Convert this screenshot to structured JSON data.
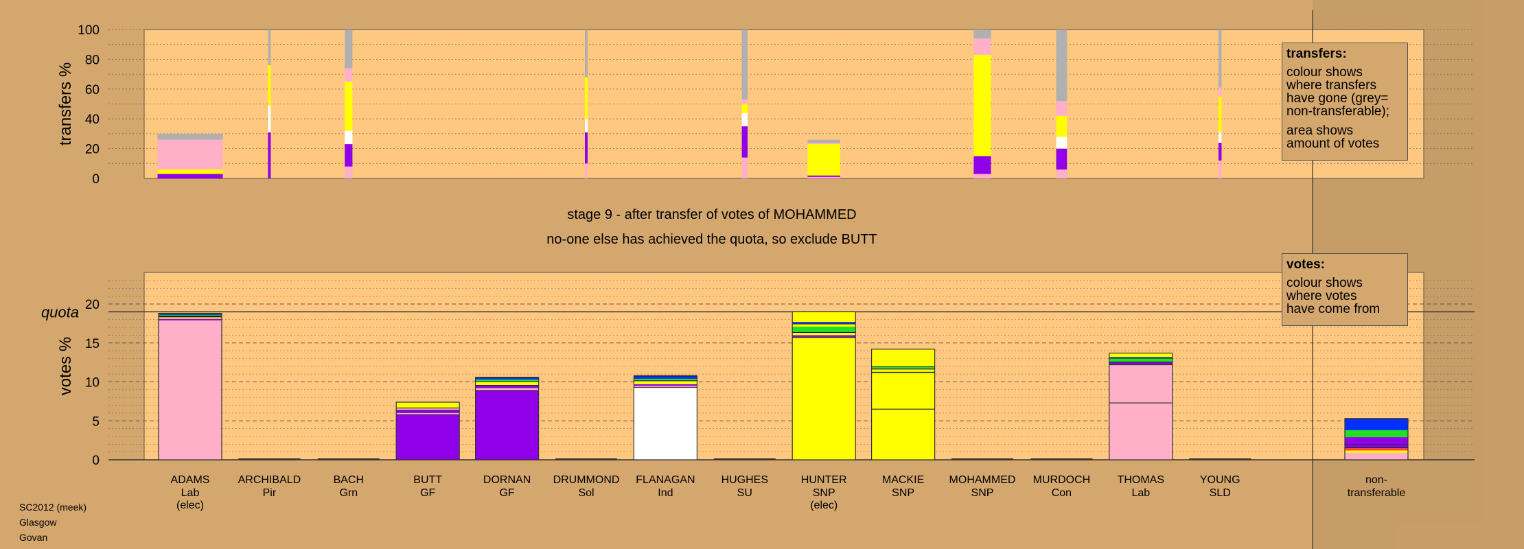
{
  "chart_data": {
    "type": "bar",
    "title": "stage 9 - after transfer of votes of MOHAMMED",
    "subtitle": "no-one else has achieved the quota, so exclude BUTT",
    "colors": {
      "background": "#d4a76e",
      "plot": "#ffc880",
      "Lab": "#ffb0c8",
      "GF": "#9000e8",
      "SNP": "#ffff00",
      "Ind": "#ffffff",
      "Grn": "#20e020",
      "SLD": "#0030ff",
      "SU": "#101040",
      "Sol": "#ff4040",
      "nontransferable": "#b0b0b0"
    },
    "candidates": [
      {
        "name": "ADAMS",
        "party": "Lab",
        "status": "(elec)"
      },
      {
        "name": "ARCHIBALD",
        "party": "Pir",
        "status": ""
      },
      {
        "name": "BACH",
        "party": "Grn",
        "status": ""
      },
      {
        "name": "BUTT",
        "party": "GF",
        "status": ""
      },
      {
        "name": "DORNAN",
        "party": "GF",
        "status": ""
      },
      {
        "name": "DRUMMOND",
        "party": "Sol",
        "status": ""
      },
      {
        "name": "FLANAGAN",
        "party": "Ind",
        "status": ""
      },
      {
        "name": "HUGHES",
        "party": "SU",
        "status": ""
      },
      {
        "name": "HUNTER",
        "party": "SNP",
        "status": "(elec)"
      },
      {
        "name": "MACKIE",
        "party": "SNP",
        "status": ""
      },
      {
        "name": "MOHAMMED",
        "party": "SNP",
        "status": ""
      },
      {
        "name": "MURDOCH",
        "party": "Con",
        "status": ""
      },
      {
        "name": "THOMAS",
        "party": "Lab",
        "status": ""
      },
      {
        "name": "YOUNG",
        "party": "SLD",
        "status": ""
      }
    ],
    "nontransferable_label": [
      "non-",
      "transferable"
    ],
    "transfers_chart": {
      "ylabel": "transfers %",
      "ylim": [
        0,
        100
      ],
      "yticks": [
        0,
        20,
        40,
        60,
        80,
        100
      ],
      "bars": [
        {
          "candidate": "ADAMS",
          "width_pct": 1.7,
          "segments": [
            {
              "c": "GF",
              "v": 3
            },
            {
              "c": "SNP",
              "v": 3
            },
            {
              "c": "Lab",
              "v": 20
            },
            {
              "c": "nontransferable",
              "v": 4
            }
          ]
        },
        {
          "candidate": "ARCHIBALD",
          "width_pct": 0.05,
          "segments": [
            {
              "c": "GF",
              "v": 31
            },
            {
              "c": "Ind",
              "v": 18
            },
            {
              "c": "SNP",
              "v": 27
            },
            {
              "c": "nontransferable",
              "v": 24
            }
          ]
        },
        {
          "candidate": "BACH",
          "width_pct": 0.2,
          "segments": [
            {
              "c": "Lab",
              "v": 8
            },
            {
              "c": "GF",
              "v": 15
            },
            {
              "c": "Ind",
              "v": 9
            },
            {
              "c": "SNP",
              "v": 33
            },
            {
              "c": "Lab",
              "v": 9
            },
            {
              "c": "nontransferable",
              "v": 26
            }
          ]
        },
        {
          "candidate": "DRUMMOND",
          "width_pct": 0.05,
          "segments": [
            {
              "c": "Lab",
              "v": 10
            },
            {
              "c": "GF",
              "v": 21
            },
            {
              "c": "Ind",
              "v": 9
            },
            {
              "c": "SNP",
              "v": 28
            },
            {
              "c": "nontransferable",
              "v": 32
            }
          ]
        },
        {
          "candidate": "HUGHES",
          "width_pct": 0.15,
          "segments": [
            {
              "c": "Lab",
              "v": 14
            },
            {
              "c": "GF",
              "v": 21
            },
            {
              "c": "Ind",
              "v": 9
            },
            {
              "c": "SNP",
              "v": 6
            },
            {
              "c": "Lab",
              "v": 3
            },
            {
              "c": "nontransferable",
              "v": 47
            }
          ]
        },
        {
          "candidate": "HUNTER",
          "width_pct": 0.85,
          "segments": [
            {
              "c": "Lab",
              "v": 1
            },
            {
              "c": "GF",
              "v": 1
            },
            {
              "c": "SNP",
              "v": 21
            },
            {
              "c": "Lab",
              "v": 1
            },
            {
              "c": "nontransferable",
              "v": 2
            }
          ]
        },
        {
          "candidate": "MOHAMMED",
          "width_pct": 0.45,
          "segments": [
            {
              "c": "Lab",
              "v": 3
            },
            {
              "c": "GF",
              "v": 12
            },
            {
              "c": "SNP",
              "v": 68
            },
            {
              "c": "Lab",
              "v": 11
            },
            {
              "c": "nontransferable",
              "v": 6
            }
          ]
        },
        {
          "candidate": "MURDOCH",
          "width_pct": 0.28,
          "segments": [
            {
              "c": "Lab",
              "v": 6
            },
            {
              "c": "GF",
              "v": 14
            },
            {
              "c": "Ind",
              "v": 8
            },
            {
              "c": "SNP",
              "v": 14
            },
            {
              "c": "Lab",
              "v": 10
            },
            {
              "c": "nontransferable",
              "v": 48
            }
          ]
        },
        {
          "candidate": "YOUNG",
          "width_pct": 0.08,
          "segments": [
            {
              "c": "Lab",
              "v": 12
            },
            {
              "c": "GF",
              "v": 12
            },
            {
              "c": "Ind",
              "v": 7
            },
            {
              "c": "SNP",
              "v": 24
            },
            {
              "c": "Lab",
              "v": 6
            },
            {
              "c": "nontransferable",
              "v": 39
            }
          ]
        }
      ]
    },
    "votes_chart": {
      "ylabel": "votes %",
      "ylim": [
        0,
        24
      ],
      "yticks": [
        0,
        5,
        10,
        15,
        20
      ],
      "quota_label": "quota",
      "quota": 19.0,
      "bars": [
        {
          "candidate": "ADAMS",
          "segments": [
            {
              "c": "Lab",
              "v": 17.9
            },
            {
              "c": "GF",
              "v": 0.2
            },
            {
              "c": "SNP",
              "v": 0.2
            },
            {
              "c": "SU",
              "v": 0.2
            },
            {
              "c": "Grn",
              "v": 0.1
            },
            {
              "c": "SLD",
              "v": 0.1
            },
            {
              "c": "SU",
              "v": 0.1
            }
          ],
          "dividers": []
        },
        {
          "candidate": "BUTT",
          "segments": [
            {
              "c": "GF",
              "v": 5.8
            },
            {
              "c": "Lab",
              "v": 0.2
            },
            {
              "c": "GF",
              "v": 0.3
            },
            {
              "c": "SU",
              "v": 0.1
            },
            {
              "c": "Lab",
              "v": 0.2
            },
            {
              "c": "SU",
              "v": 0.1
            },
            {
              "c": "SNP",
              "v": 0.7
            }
          ],
          "dividers": [
            5.8
          ]
        },
        {
          "candidate": "DORNAN",
          "segments": [
            {
              "c": "GF",
              "v": 8.9
            },
            {
              "c": "Lab",
              "v": 0.3
            },
            {
              "c": "GF",
              "v": 0.3
            },
            {
              "c": "SU",
              "v": 0.1
            },
            {
              "c": "SNP",
              "v": 0.4
            },
            {
              "c": "SU",
              "v": 0.1
            },
            {
              "c": "Grn",
              "v": 0.2
            },
            {
              "c": "SLD",
              "v": 0.2
            },
            {
              "c": "SU",
              "v": 0.1
            }
          ],
          "dividers": [
            8.9
          ]
        },
        {
          "candidate": "FLANAGAN",
          "segments": [
            {
              "c": "Ind",
              "v": 9.3
            },
            {
              "c": "Lab",
              "v": 0.2
            },
            {
              "c": "GF",
              "v": 0.2
            },
            {
              "c": "SNP",
              "v": 0.4
            },
            {
              "c": "SU",
              "v": 0.1
            },
            {
              "c": "Grn",
              "v": 0.2
            },
            {
              "c": "SLD",
              "v": 0.3
            },
            {
              "c": "SU",
              "v": 0.1
            }
          ],
          "dividers": [
            9.3
          ]
        },
        {
          "candidate": "HUNTER",
          "segments": [
            {
              "c": "SNP",
              "v": 15.7
            },
            {
              "c": "SU",
              "v": 0.1
            },
            {
              "c": "GF",
              "v": 0.2
            },
            {
              "c": "SNP",
              "v": 0.3
            },
            {
              "c": "SU",
              "v": 0.1
            },
            {
              "c": "Grn",
              "v": 0.7
            },
            {
              "c": "SNP",
              "v": 0.3
            },
            {
              "c": "SU",
              "v": 0.1
            },
            {
              "c": "SLD",
              "v": 0.2
            },
            {
              "c": "SNP",
              "v": 1.3
            }
          ],
          "dividers": [
            15.7
          ]
        },
        {
          "candidate": "MACKIE",
          "segments": [
            {
              "c": "SNP",
              "v": 11.2
            },
            {
              "c": "SU",
              "v": 0.1
            },
            {
              "c": "SNP",
              "v": 0.3
            },
            {
              "c": "SU",
              "v": 0.1
            },
            {
              "c": "Grn",
              "v": 0.2
            },
            {
              "c": "SU",
              "v": 0.1
            },
            {
              "c": "SNP",
              "v": 2.2
            }
          ],
          "dividers": [
            6.5,
            11.2
          ]
        },
        {
          "candidate": "THOMAS",
          "segments": [
            {
              "c": "Lab",
              "v": 12.2
            },
            {
              "c": "SU",
              "v": 0.1
            },
            {
              "c": "GF",
              "v": 0.2
            },
            {
              "c": "SU",
              "v": 0.1
            },
            {
              "c": "Grn",
              "v": 0.4
            },
            {
              "c": "SU",
              "v": 0.1
            },
            {
              "c": "SLD",
              "v": 0.1
            },
            {
              "c": "SNP",
              "v": 0.5
            }
          ],
          "dividers": [
            7.3,
            12.2
          ]
        },
        {
          "candidate": "non-transferable",
          "segments": [
            {
              "c": "Lab",
              "v": 0.9
            },
            {
              "c": "SNP",
              "v": 0.3
            },
            {
              "c": "Sol",
              "v": 0.3
            },
            {
              "c": "SU",
              "v": 0.1
            },
            {
              "c": "GF",
              "v": 0.3
            },
            {
              "c": "SU",
              "v": 0.1
            },
            {
              "c": "GF",
              "v": 0.9
            },
            {
              "c": "Grn",
              "v": 0.9
            },
            {
              "c": "SLD",
              "v": 1.4
            },
            {
              "c": "SU",
              "v": 0.1
            }
          ],
          "dividers": []
        }
      ]
    }
  },
  "legends": {
    "transfers": {
      "title": "transfers:",
      "lines": [
        [
          "colour shows",
          "where transfers",
          "have gone (grey=",
          "non-transferable);"
        ],
        [
          "area shows",
          "amount of votes"
        ]
      ]
    },
    "votes": {
      "title": "votes:",
      "lines": [
        [
          "colour shows",
          "where votes",
          "have come from"
        ]
      ]
    }
  },
  "footer": [
    "SC2012 (meek)",
    "Glasgow",
    "Govan"
  ]
}
